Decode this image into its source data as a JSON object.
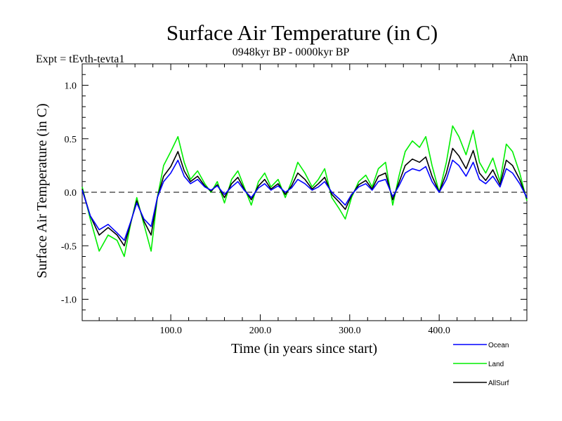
{
  "chart_data": {
    "type": "line",
    "title": "Surface Air Temperature (in C)",
    "subtitle_left": "Expt = tEvth-tevta1",
    "subtitle_center": "0948kyr BP - 0000kyr BP",
    "subtitle_right": "Ann",
    "xlabel": "Time (in years since start)",
    "ylabel": "Surface Air Temperature (in C)",
    "xlim": [
      1,
      498
    ],
    "ylim": [
      -1.2,
      1.2
    ],
    "x_ticks": [
      100,
      200,
      300,
      400
    ],
    "x_tick_labels": [
      "100.0",
      "200.0",
      "300.0",
      "400.0"
    ],
    "y_ticks": [
      -1.0,
      -0.5,
      0.0,
      0.5,
      1.0
    ],
    "y_tick_labels": [
      "-1.0",
      "-0.5",
      "0.0",
      "0.5",
      "1.0"
    ],
    "zero_line": "dashed",
    "legend_position": "bottom-right",
    "x": [
      1,
      10,
      20,
      30,
      40,
      48,
      55,
      62,
      70,
      78,
      85,
      92,
      100,
      108,
      115,
      122,
      130,
      138,
      145,
      152,
      160,
      168,
      175,
      182,
      190,
      198,
      205,
      212,
      220,
      228,
      235,
      242,
      250,
      258,
      265,
      272,
      280,
      288,
      295,
      302,
      310,
      318,
      325,
      332,
      340,
      348,
      355,
      362,
      370,
      378,
      385,
      392,
      400,
      408,
      415,
      422,
      430,
      438,
      445,
      452,
      460,
      468,
      475,
      482,
      490,
      498
    ],
    "series": [
      {
        "name": "Ocean",
        "color": "#0000ff",
        "values": [
          0.02,
          -0.22,
          -0.35,
          -0.3,
          -0.38,
          -0.45,
          -0.28,
          -0.1,
          -0.25,
          -0.32,
          -0.05,
          0.1,
          0.18,
          0.3,
          0.15,
          0.08,
          0.12,
          0.05,
          0.02,
          0.06,
          -0.02,
          0.05,
          0.1,
          0.02,
          -0.05,
          0.04,
          0.08,
          0.02,
          0.06,
          0.0,
          0.04,
          0.12,
          0.08,
          0.02,
          0.05,
          0.1,
          0.0,
          -0.06,
          -0.12,
          -0.02,
          0.05,
          0.08,
          0.02,
          0.1,
          0.12,
          -0.04,
          0.06,
          0.18,
          0.22,
          0.2,
          0.24,
          0.1,
          0.0,
          0.12,
          0.3,
          0.25,
          0.15,
          0.28,
          0.12,
          0.08,
          0.15,
          0.05,
          0.22,
          0.18,
          0.08,
          -0.05
        ]
      },
      {
        "name": "Land",
        "color": "#00ee00",
        "values": [
          0.05,
          -0.25,
          -0.55,
          -0.4,
          -0.45,
          -0.6,
          -0.3,
          -0.05,
          -0.3,
          -0.55,
          -0.05,
          0.25,
          0.38,
          0.52,
          0.28,
          0.12,
          0.2,
          0.08,
          0.0,
          0.1,
          -0.1,
          0.12,
          0.2,
          0.05,
          -0.12,
          0.1,
          0.18,
          0.05,
          0.12,
          -0.05,
          0.1,
          0.28,
          0.18,
          0.05,
          0.12,
          0.22,
          -0.05,
          -0.15,
          -0.25,
          -0.05,
          0.1,
          0.16,
          0.05,
          0.22,
          0.28,
          -0.12,
          0.15,
          0.38,
          0.48,
          0.42,
          0.52,
          0.25,
          0.0,
          0.28,
          0.62,
          0.52,
          0.35,
          0.58,
          0.28,
          0.18,
          0.32,
          0.1,
          0.45,
          0.38,
          0.18,
          -0.08
        ]
      },
      {
        "name": "AllSurf",
        "color": "#000000",
        "values": [
          0.03,
          -0.22,
          -0.4,
          -0.33,
          -0.4,
          -0.5,
          -0.29,
          -0.08,
          -0.27,
          -0.4,
          -0.05,
          0.15,
          0.24,
          0.38,
          0.2,
          0.1,
          0.15,
          0.06,
          0.01,
          0.07,
          -0.05,
          0.08,
          0.14,
          0.03,
          -0.07,
          0.06,
          0.12,
          0.03,
          0.08,
          -0.02,
          0.06,
          0.18,
          0.12,
          0.03,
          0.08,
          0.14,
          -0.02,
          -0.09,
          -0.16,
          -0.03,
          0.07,
          0.11,
          0.03,
          0.15,
          0.18,
          -0.07,
          0.09,
          0.25,
          0.31,
          0.28,
          0.33,
          0.15,
          0.0,
          0.18,
          0.41,
          0.34,
          0.22,
          0.39,
          0.18,
          0.11,
          0.21,
          0.07,
          0.3,
          0.25,
          0.12,
          -0.06
        ]
      }
    ]
  }
}
